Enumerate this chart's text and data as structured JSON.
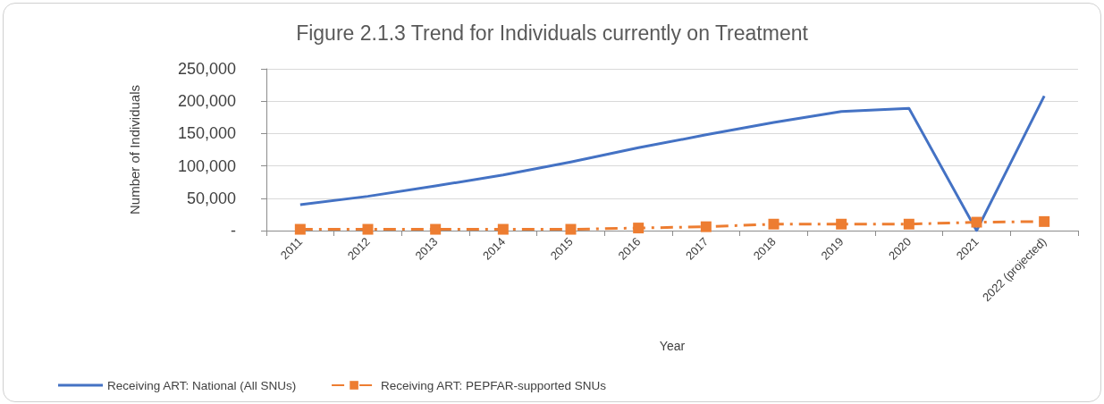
{
  "chart_data": {
    "type": "line",
    "title": "Figure 2.1.3 Trend for Individuals currently on Treatment",
    "xlabel": "Year",
    "ylabel": "Number of Individuals",
    "categories": [
      "2011",
      "2012",
      "2013",
      "2014",
      "2015",
      "2016",
      "2017",
      "2018",
      "2019",
      "2020",
      "2021",
      "2022 (projected)"
    ],
    "series": [
      {
        "name": "Receiving ART: National (All SNUs)",
        "color": "#4472c4",
        "marker": "none",
        "line_style": "solid",
        "values": [
          40000,
          53000,
          69000,
          86000,
          106000,
          128000,
          148000,
          167000,
          184000,
          189000,
          0,
          208000
        ]
      },
      {
        "name": "Receiving ART: PEPFAR-supported SNUs",
        "color": "#ed7d31",
        "marker": "square",
        "line_style": "dashed",
        "values": [
          2000,
          2000,
          2000,
          2000,
          2000,
          4000,
          6000,
          10000,
          10000,
          10000,
          13000,
          14000
        ]
      }
    ],
    "ylim": [
      0,
      250000
    ],
    "yticks": [
      {
        "value": 0,
        "label": "-"
      },
      {
        "value": 50000,
        "label": "50,000"
      },
      {
        "value": 100000,
        "label": "100,000"
      },
      {
        "value": 150000,
        "label": "150,000"
      },
      {
        "value": 200000,
        "label": "200,000"
      },
      {
        "value": 250000,
        "label": "250,000"
      }
    ],
    "grid": "y",
    "legend": "bottom left"
  }
}
